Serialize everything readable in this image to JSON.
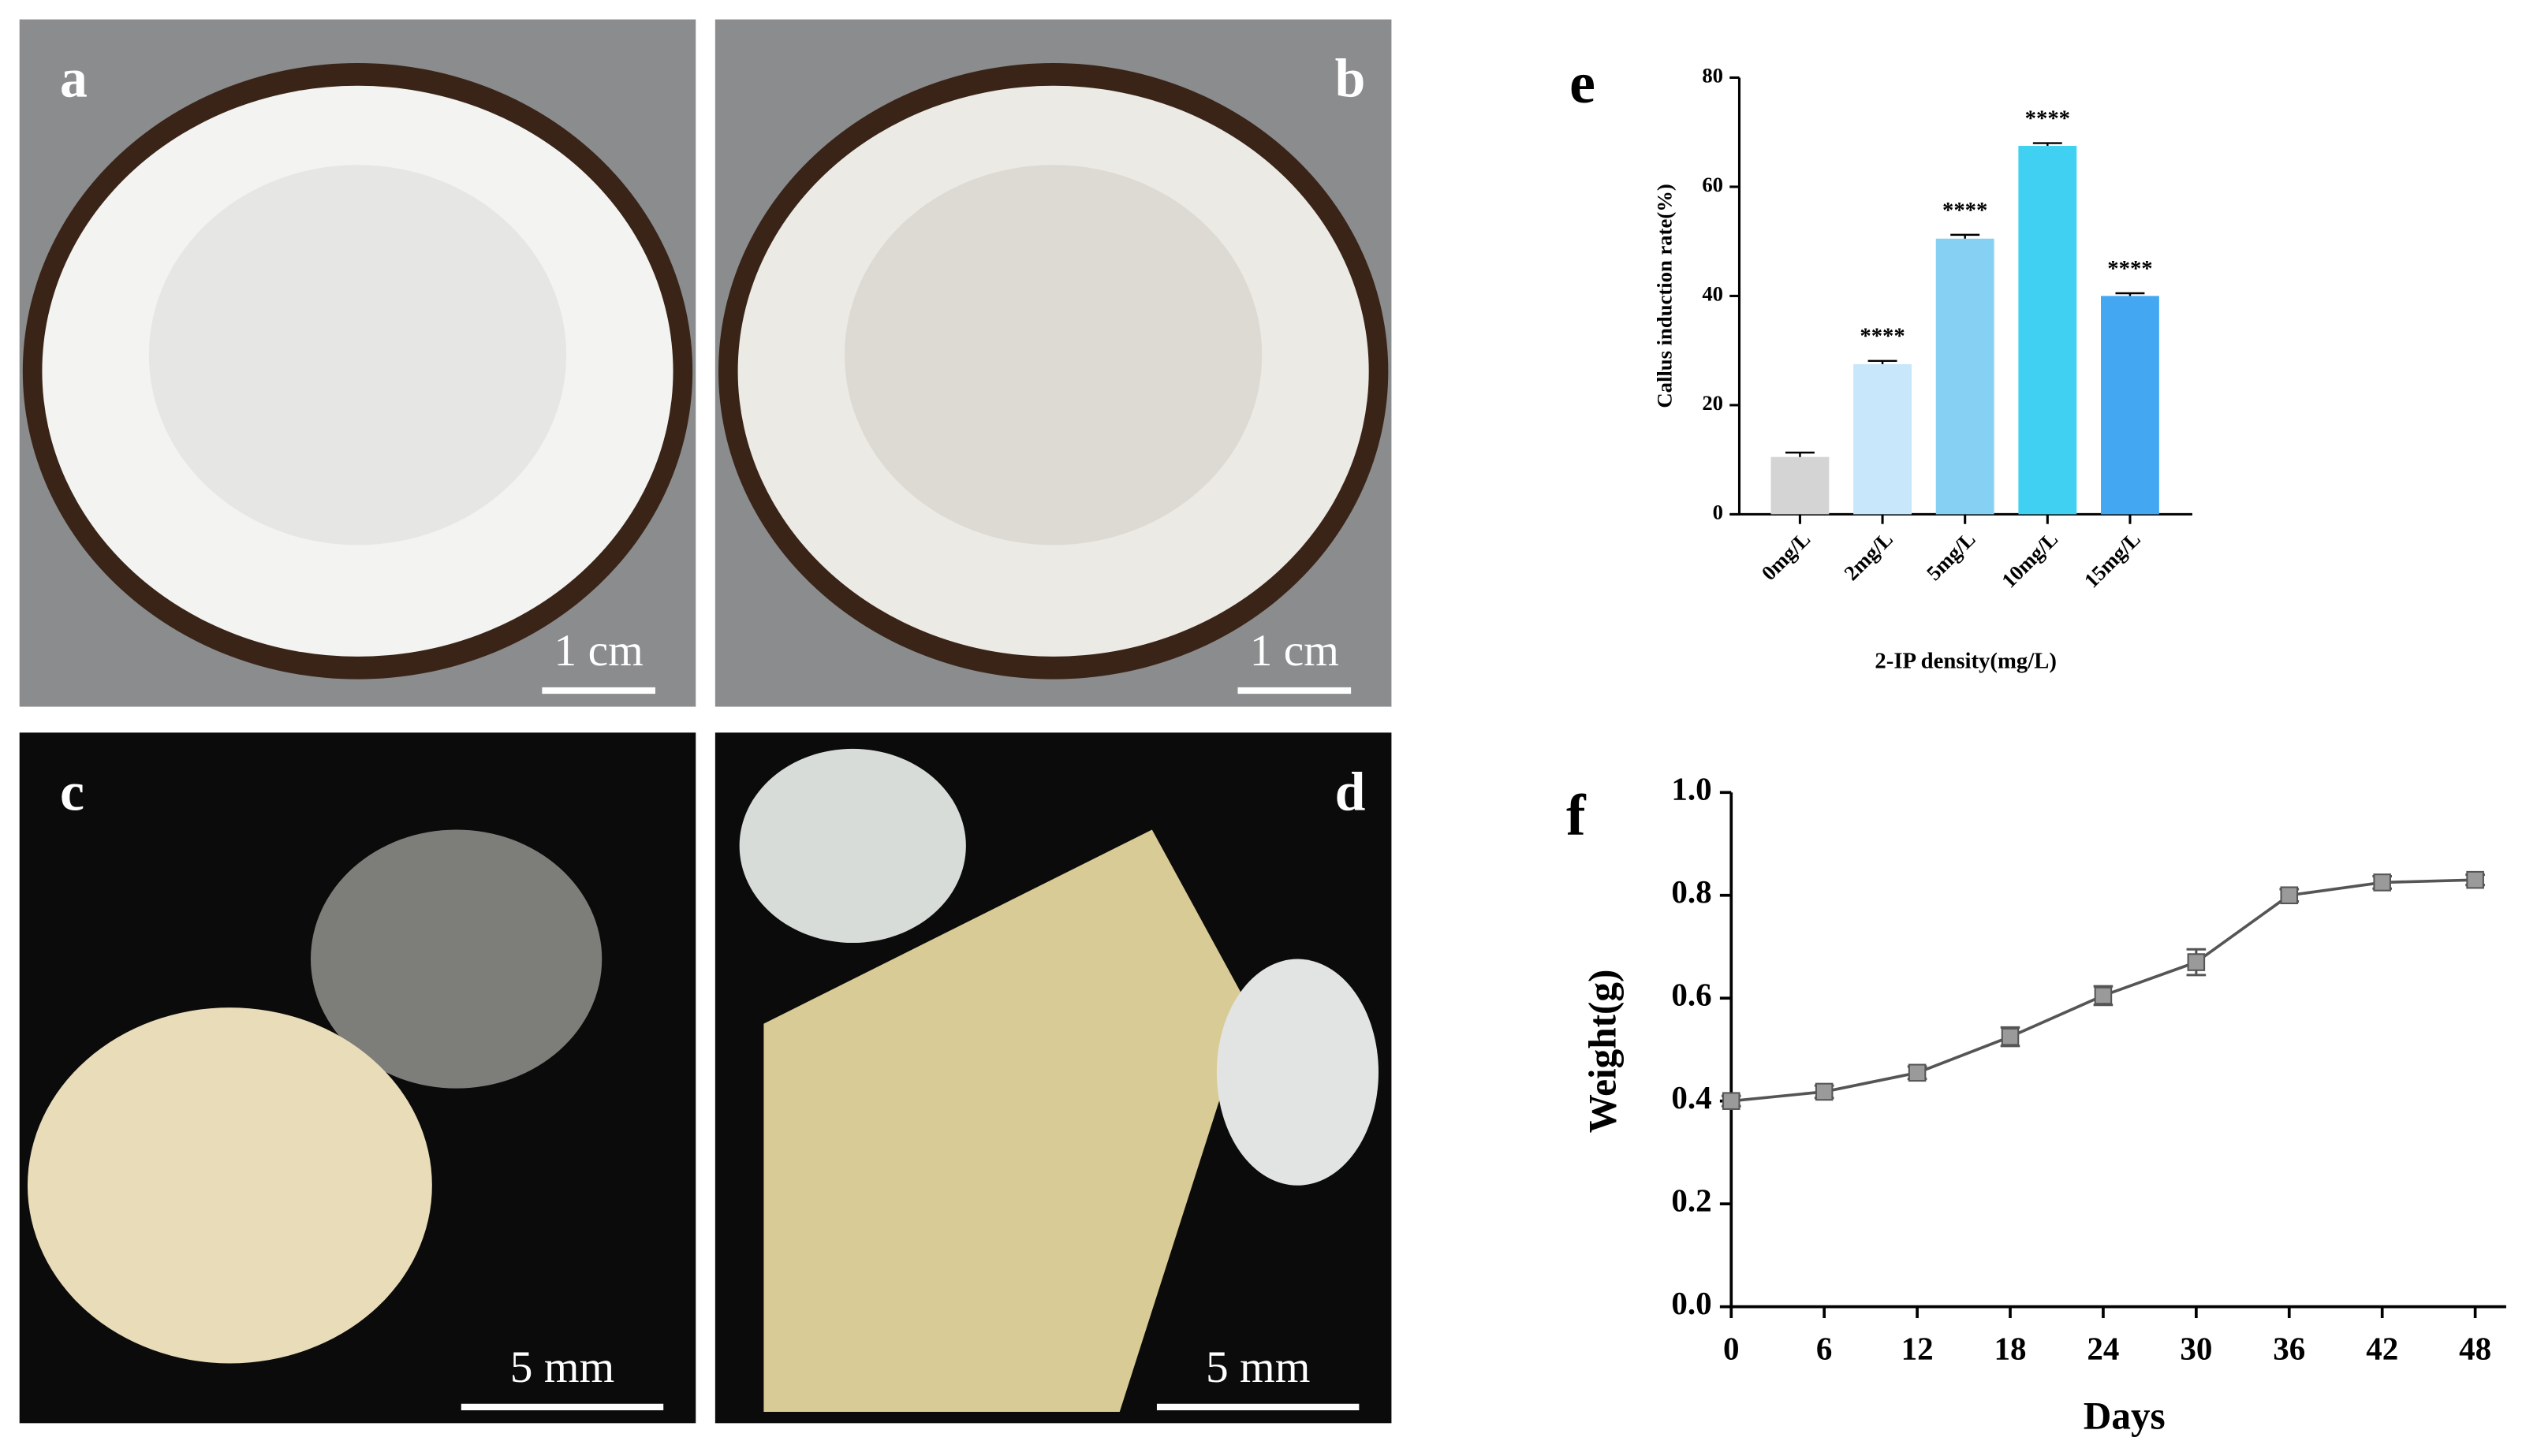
{
  "photos": [
    {
      "label": "a",
      "scale_bar": "1 cm"
    },
    {
      "label": "b",
      "scale_bar": "1 cm"
    },
    {
      "label": "c",
      "scale_bar": "5 mm"
    },
    {
      "label": "d",
      "scale_bar": "5 mm"
    }
  ],
  "chart_data": [
    {
      "type": "bar",
      "panel_label": "e",
      "categories": [
        "0mg/L",
        "2mg/L",
        "5mg/L",
        "10mg/L",
        "15mg/L"
      ],
      "values": [
        10.5,
        27.5,
        50.5,
        67.5,
        40
      ],
      "errors": [
        0.8,
        0.6,
        0.7,
        0.5,
        0.5
      ],
      "significance": [
        null,
        "****",
        "****",
        "****",
        "****"
      ],
      "colors": [
        "#d4d4d4",
        "#c8e7fb",
        "#86d1f3",
        "#40d0f1",
        "#43a7f1"
      ],
      "ylim": [
        0,
        80
      ],
      "yticks": [
        0,
        20,
        40,
        60,
        80
      ],
      "y_label": "Callus induction rate(%)",
      "x_label": "2-IP density(mg/L)"
    },
    {
      "type": "line",
      "panel_label": "f",
      "x": [
        0,
        6,
        12,
        18,
        24,
        30,
        36,
        42,
        48
      ],
      "values": [
        0.4,
        0.418,
        0.455,
        0.525,
        0.605,
        0.67,
        0.8,
        0.825,
        0.83
      ],
      "errors": [
        0.01,
        0.012,
        0.012,
        0.018,
        0.018,
        0.025,
        0.012,
        0.012,
        0.01
      ],
      "color": "#555555",
      "marker_color": "#9a9a9a",
      "xlim": [
        0,
        50
      ],
      "xticks": [
        0,
        6,
        12,
        18,
        24,
        30,
        36,
        42,
        48
      ],
      "ylim": [
        0,
        1
      ],
      "yticks": [
        {
          "value": 0,
          "label": "0.0"
        },
        0.2,
        0.4,
        0.6,
        0.8,
        {
          "value": 1,
          "label": "1.0"
        }
      ],
      "y_label": "Weight(g)",
      "x_label": "Days"
    }
  ]
}
